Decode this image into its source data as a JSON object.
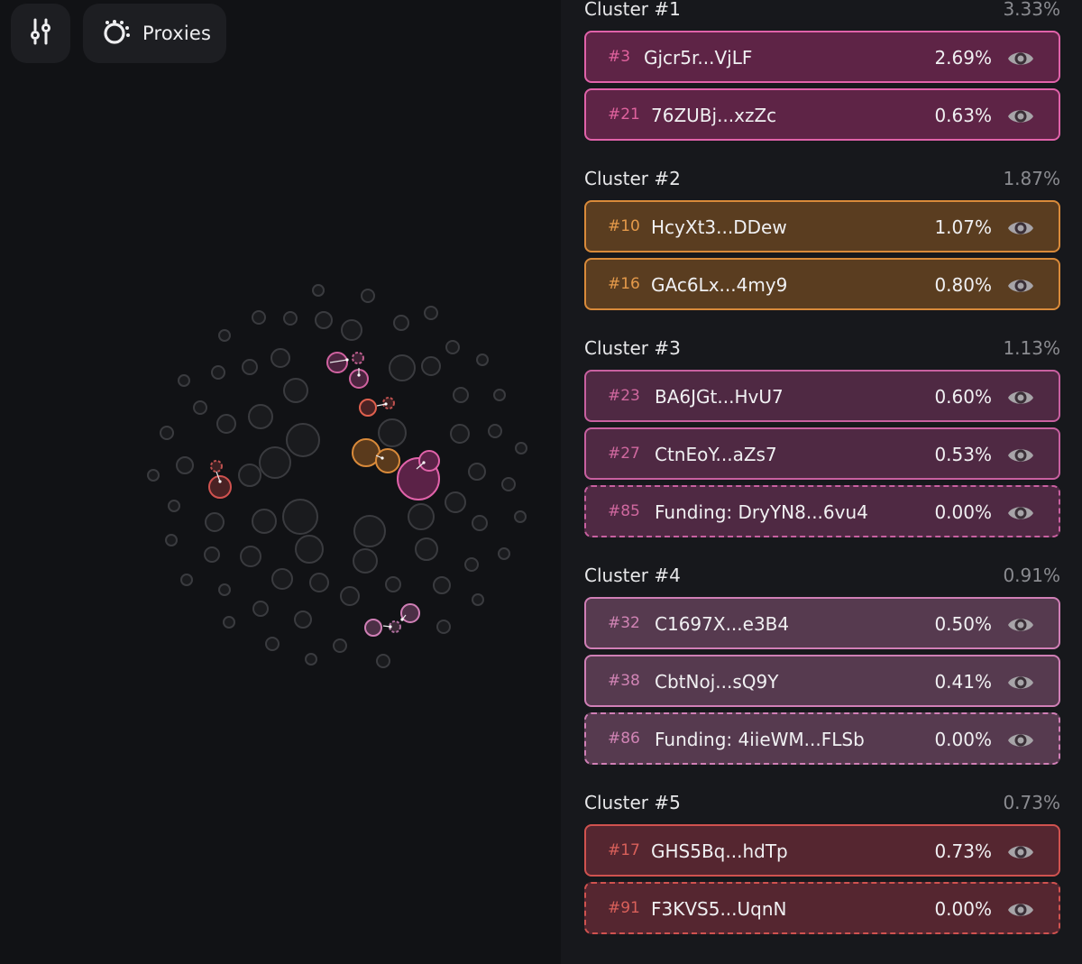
{
  "toolbar": {
    "settings_icon": "sliders-icon",
    "proxies_icon": "proxies-icon",
    "proxies_label": "Proxies"
  },
  "colors": {
    "background": "#111215",
    "panel": "#17181c",
    "node_gray": "#3a3b3f",
    "pink": "#e062a9",
    "orange": "#d98a3a",
    "red": "#d0524f"
  },
  "clusters": [
    {
      "title": "Cluster #1",
      "percent": "3.33%",
      "color": "pink",
      "wallets": [
        {
          "index": "#3",
          "address": "Gjcr5r...VjLF",
          "percent": "2.69%",
          "funding": false
        },
        {
          "index": "#21",
          "address": "76ZUBj...xzZc",
          "percent": "0.63%",
          "funding": false
        }
      ]
    },
    {
      "title": "Cluster #2",
      "percent": "1.87%",
      "color": "orange",
      "wallets": [
        {
          "index": "#10",
          "address": "HcyXt3...DDew",
          "percent": "1.07%",
          "funding": false
        },
        {
          "index": "#16",
          "address": "GAc6Lx...4my9",
          "percent": "0.80%",
          "funding": false
        }
      ]
    },
    {
      "title": "Cluster #3",
      "percent": "1.13%",
      "color": "mauve",
      "wallets": [
        {
          "index": "#23",
          "address": "BA6JGt...HvU7",
          "percent": "0.60%",
          "funding": false
        },
        {
          "index": "#27",
          "address": "CtnEoY...aZs7",
          "percent": "0.53%",
          "funding": false
        },
        {
          "index": "#85",
          "address": "Funding: DryYN8...6vu4",
          "percent": "0.00%",
          "funding": true
        }
      ]
    },
    {
      "title": "Cluster #4",
      "percent": "0.91%",
      "color": "lilac",
      "wallets": [
        {
          "index": "#32",
          "address": "C1697X...e3B4",
          "percent": "0.50%",
          "funding": false
        },
        {
          "index": "#38",
          "address": "CbtNoj...sQ9Y",
          "percent": "0.41%",
          "funding": false
        },
        {
          "index": "#86",
          "address": "Funding: 4iieWM...FLSb",
          "percent": "0.00%",
          "funding": true
        }
      ]
    },
    {
      "title": "Cluster #5",
      "percent": "0.73%",
      "color": "red",
      "wallets": [
        {
          "index": "#17",
          "address": "GHS5Bq...hdTp",
          "percent": "0.73%",
          "funding": false
        },
        {
          "index": "#91",
          "address": "F3KVS5...UqnN",
          "percent": "0.00%",
          "funding": true
        }
      ]
    }
  ]
}
